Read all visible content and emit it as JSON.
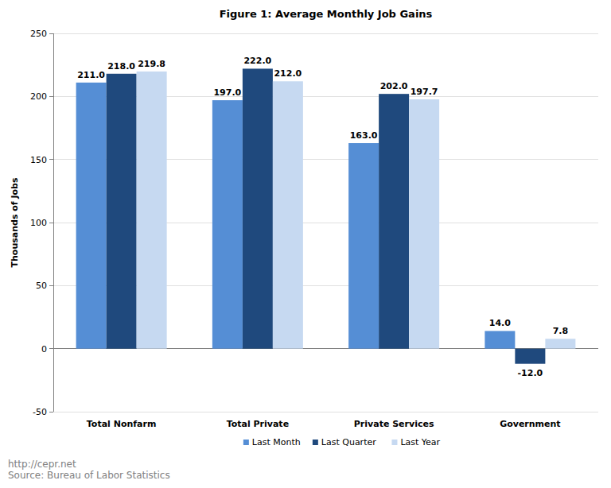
{
  "chart_data": {
    "type": "bar",
    "title": "Figure 1: Average Monthly Job Gains",
    "y_label": "Thousands of Jobs",
    "categories": [
      "Total Nonfarm",
      "Total Private",
      "Private Services",
      "Government"
    ],
    "series": [
      {
        "name": "Last Month",
        "color": "#558ed5",
        "values": [
          211,
          197,
          163,
          14
        ],
        "value_labels": [
          "211.0",
          "197.0",
          "163.0",
          "14.0"
        ]
      },
      {
        "name": "Last Quarter",
        "color": "#1f497d",
        "values": [
          218,
          222,
          202,
          -12
        ],
        "value_labels": [
          "218.0",
          "222.0",
          "202.0",
          "-12.0"
        ]
      },
      {
        "name": "Last Year",
        "color": "#c6d9f1",
        "values": [
          219.8,
          212,
          197.7,
          7.8
        ],
        "value_labels": [
          "219.8",
          "212.0",
          "197.7",
          "7.8"
        ]
      }
    ],
    "ylim": [
      -50,
      250
    ],
    "yticks": [
      -50,
      0,
      50,
      100,
      150,
      200,
      250
    ],
    "grid": true,
    "legend": "bottom",
    "data_labels": true,
    "annotations": [
      "http://cepr.net",
      "Source: Bureau of Labor Statistics"
    ]
  }
}
